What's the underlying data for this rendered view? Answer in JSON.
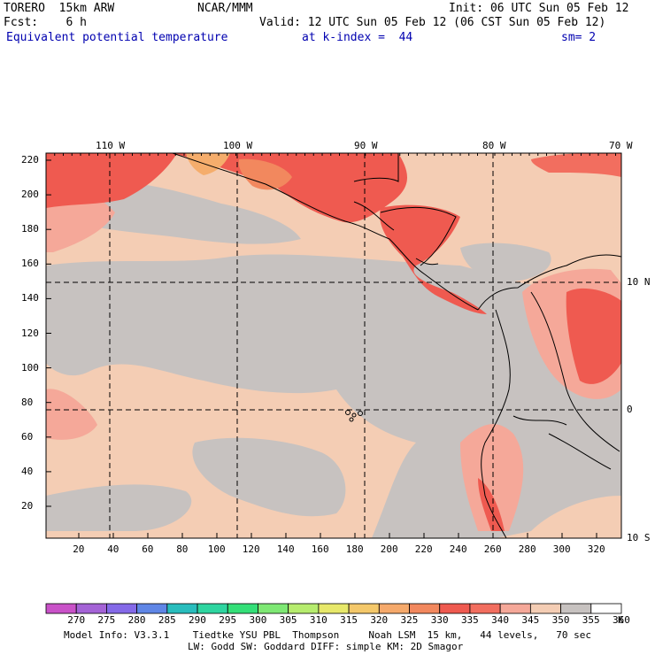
{
  "header": {
    "model": "TORERO  15km ARW",
    "center": "NCAR/MMM",
    "init": "Init: 06 UTC Sun 05 Feb 12",
    "fcst": "Fcst:    6 h",
    "valid": "Valid: 12 UTC Sun 05 Feb 12 (06 CST Sun 05 Feb 12)",
    "field": "Equivalent potential temperature",
    "level": "at k-index =  44",
    "smoothing": "sm= 2"
  },
  "map": {
    "longitude_labels": [
      {
        "label": "110 W",
        "lon": -110
      },
      {
        "label": "100 W",
        "lon": -100
      },
      {
        "label": "90 W",
        "lon": -90
      },
      {
        "label": "80 W",
        "lon": -80
      },
      {
        "label": "70 W",
        "lon": -70
      }
    ],
    "latitude_labels": [
      {
        "label": "10 N",
        "lat": 10
      },
      {
        "label": "0",
        "lat": 0
      },
      {
        "label": "10 S",
        "lat": -10
      }
    ],
    "y_ticks": [
      "220",
      "200",
      "180",
      "160",
      "140",
      "120",
      "100",
      "80",
      "60",
      "40",
      "20"
    ],
    "x_ticks": [
      "20",
      "40",
      "60",
      "80",
      "100",
      "120",
      "140",
      "160",
      "180",
      "200",
      "220",
      "240",
      "260",
      "280",
      "300",
      "320"
    ],
    "grid_lines": true,
    "field_colors": {
      "345": "#f4cdb4",
      "350": "#c7c2c0",
      "340": "#f5a899",
      "335": "#f26e5f",
      "330": "#ef5a50",
      "325": "#f2885e",
      "320": "#f5ad6c"
    }
  },
  "colorbar": {
    "labels": [
      "270",
      "275",
      "280",
      "285",
      "290",
      "295",
      "300",
      "305",
      "310",
      "315",
      "320",
      "325",
      "330",
      "335",
      "340",
      "345",
      "350",
      "355",
      "360"
    ],
    "unit": "K",
    "colors": [
      "#c952c8",
      "#a463d6",
      "#8469e8",
      "#5f86e6",
      "#29bdbd",
      "#2ed5a0",
      "#34df78",
      "#7ee874",
      "#b6ec6e",
      "#e7e86a",
      "#f4c86a",
      "#f5a96b",
      "#f2885e",
      "#ef5a50",
      "#f26e5f",
      "#f5a899",
      "#f4cdb4",
      "#c7c2c0",
      "#ffffff"
    ]
  },
  "footer": {
    "line1": "Model Info: V3.3.1    Tiedtke YSU PBL  Thompson     Noah LSM  15 km,   44 levels,   70 sec",
    "line2": "LW: Godd SW: Goddard DIFF: simple KM: 2D Smagor"
  }
}
